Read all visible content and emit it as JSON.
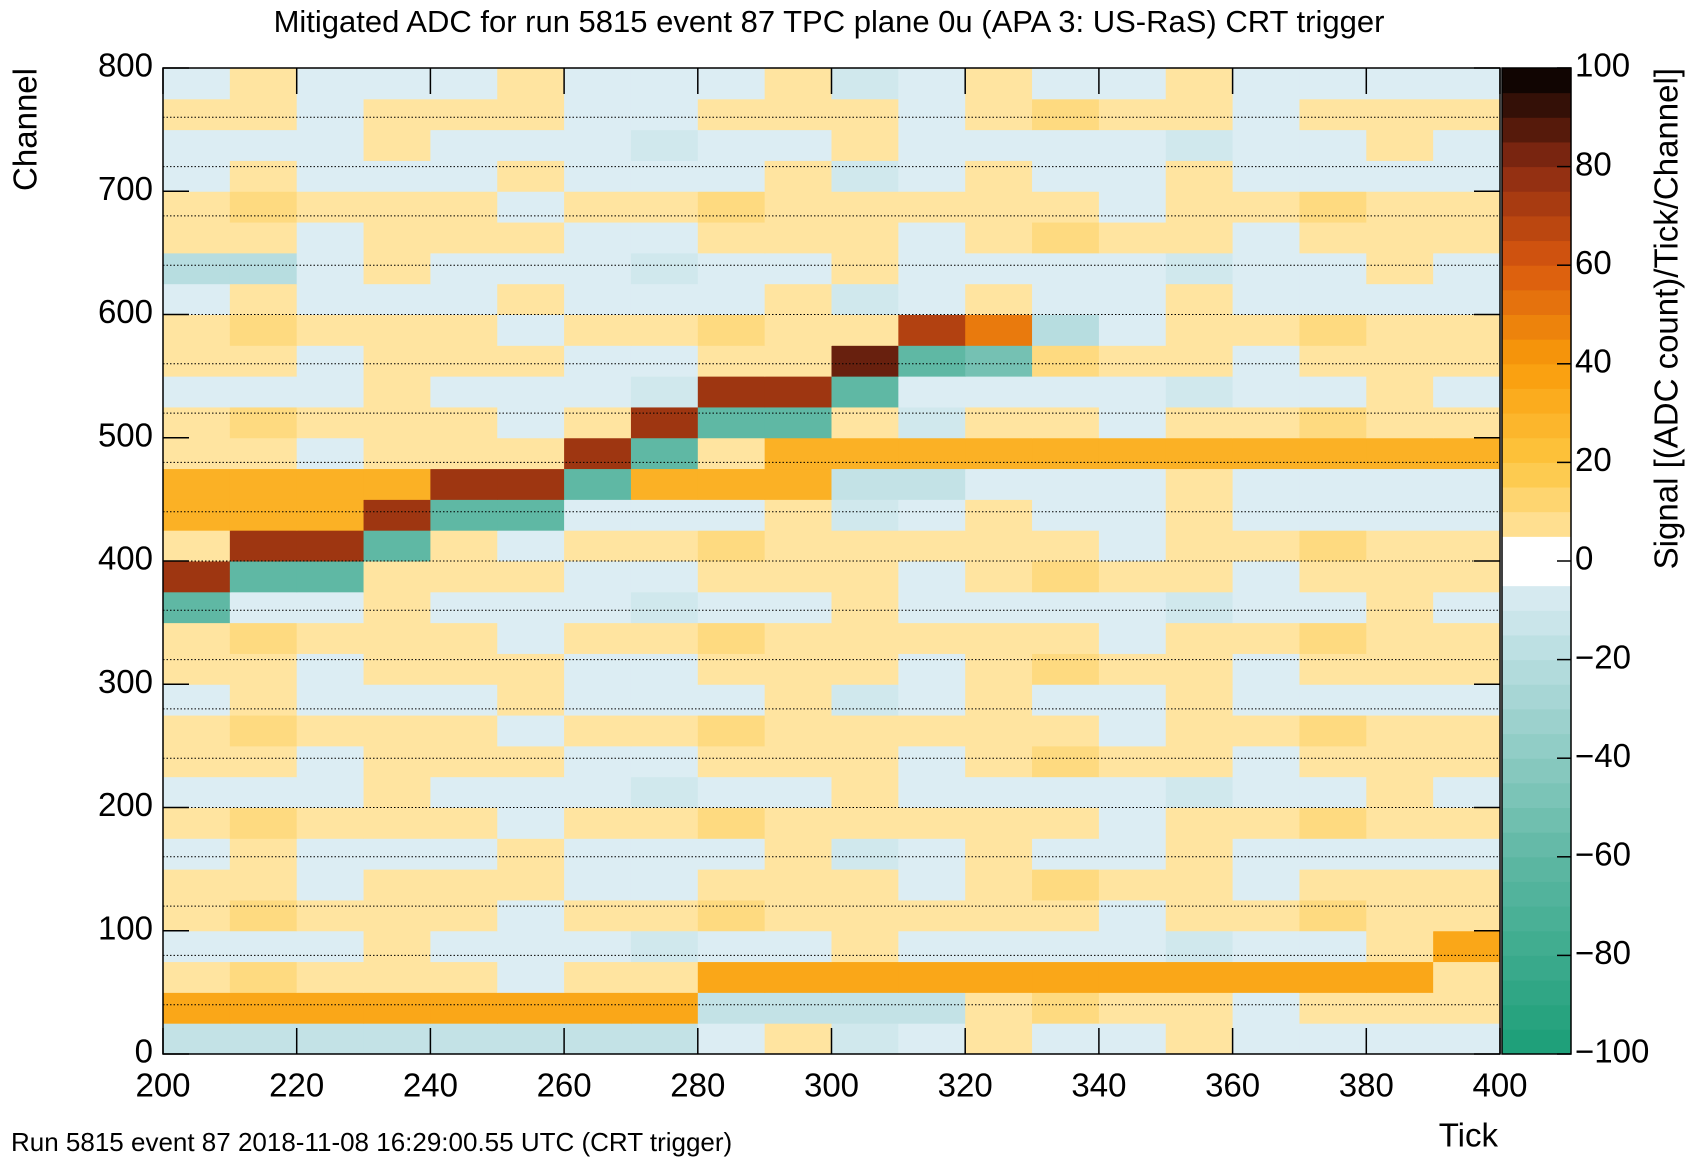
{
  "chart_data": {
    "type": "heatmap",
    "title": "Mitigated ADC for run 5815 event 87 TPC plane 0u (APA 3: US-RaS) CRT trigger",
    "x_label": "Tick",
    "y_label": "Channel",
    "z_label": "Signal [(ADC count)/Tick/Channel]",
    "footer": "Run 5815 event 87 2018-11-08 16:29:00.55 UTC (CRT trigger)",
    "xlim": [
      200,
      400
    ],
    "ylim": [
      0,
      800
    ],
    "zlim": [
      -100,
      100
    ],
    "xticks": [
      200,
      220,
      240,
      260,
      280,
      300,
      320,
      340,
      360,
      380,
      400
    ],
    "yticks": [
      0,
      100,
      200,
      300,
      400,
      500,
      600,
      700,
      800
    ],
    "zticks": [
      {
        "value": -100,
        "label": "−100"
      },
      {
        "value": -80,
        "label": "−80"
      },
      {
        "value": -60,
        "label": "−60"
      },
      {
        "value": -40,
        "label": "−40"
      },
      {
        "value": -20,
        "label": "−20"
      },
      0,
      20,
      40,
      60,
      80,
      100
    ],
    "hlines": [
      40,
      80,
      120,
      160,
      200,
      240,
      280,
      320,
      360,
      400,
      440,
      480,
      520,
      560,
      600,
      640,
      680,
      720,
      760
    ],
    "colorscale": [
      [
        -100,
        "#1b9e77"
      ],
      [
        -60,
        "#5fb8a4"
      ],
      [
        -20,
        "#b7dde0"
      ],
      [
        -5,
        "#dcedf3"
      ],
      [
        -4,
        "#ffffff"
      ],
      [
        4,
        "#ffffff"
      ],
      [
        5,
        "#ffe4a0"
      ],
      [
        20,
        "#fdc640"
      ],
      [
        40,
        "#f99c0a"
      ],
      [
        60,
        "#d9580f"
      ],
      [
        80,
        "#8a2a12"
      ],
      [
        100,
        "#000000"
      ]
    ],
    "x_edges": [
      200,
      210,
      220,
      230,
      240,
      250,
      260,
      270,
      280,
      290,
      300,
      310,
      320,
      330,
      340,
      350,
      360,
      370,
      380,
      390,
      400
    ],
    "y_edges": [
      0,
      25,
      50,
      75,
      100,
      125,
      150,
      175,
      200,
      225,
      250,
      275,
      300,
      325,
      350,
      375,
      400,
      425,
      450,
      475,
      500,
      525,
      550,
      575,
      600,
      625,
      650,
      675,
      700,
      725,
      750,
      775,
      800
    ],
    "z": [
      [
        -15,
        -15,
        -15,
        -15,
        -15,
        -15,
        -15,
        -15,
        -5,
        5,
        -10,
        -5,
        5,
        -5,
        -5,
        5,
        -5,
        -5,
        -5,
        -5
      ],
      [
        35,
        35,
        35,
        35,
        35,
        35,
        35,
        35,
        -15,
        -15,
        -15,
        -15,
        5,
        10,
        5,
        5,
        -5,
        5,
        5,
        5
      ],
      [
        5,
        10,
        5,
        5,
        5,
        -5,
        5,
        5,
        35,
        35,
        35,
        35,
        35,
        35,
        35,
        35,
        35,
        35,
        35,
        5
      ],
      [
        -5,
        -5,
        -5,
        5,
        -5,
        -5,
        -5,
        -10,
        -5,
        -5,
        5,
        -5,
        -5,
        -5,
        -5,
        -10,
        -5,
        -5,
        5,
        35
      ],
      [
        5,
        10,
        5,
        5,
        5,
        -5,
        5,
        5,
        10,
        5,
        5,
        5,
        5,
        5,
        -5,
        5,
        5,
        10,
        5,
        5
      ],
      [
        5,
        5,
        -5,
        5,
        5,
        5,
        -5,
        -5,
        5,
        5,
        5,
        -5,
        5,
        10,
        5,
        5,
        -5,
        5,
        5,
        5
      ],
      [
        -5,
        5,
        -5,
        -5,
        -5,
        5,
        -5,
        -5,
        -5,
        5,
        -10,
        -5,
        5,
        -5,
        -5,
        5,
        -5,
        -5,
        -5,
        -5
      ],
      [
        5,
        10,
        5,
        5,
        5,
        -5,
        5,
        5,
        10,
        5,
        5,
        5,
        5,
        5,
        -5,
        5,
        5,
        10,
        5,
        5
      ],
      [
        -5,
        -5,
        -5,
        5,
        -5,
        -5,
        -5,
        -10,
        -5,
        -5,
        5,
        -5,
        -5,
        -5,
        -5,
        -10,
        -5,
        -5,
        5,
        -5
      ],
      [
        5,
        5,
        -5,
        5,
        5,
        5,
        -5,
        -5,
        5,
        5,
        5,
        -5,
        5,
        10,
        5,
        5,
        -5,
        5,
        5,
        5
      ],
      [
        5,
        10,
        5,
        5,
        5,
        -5,
        5,
        5,
        10,
        5,
        5,
        5,
        5,
        5,
        -5,
        5,
        5,
        10,
        5,
        5
      ],
      [
        -5,
        5,
        -5,
        -5,
        -5,
        5,
        -5,
        -5,
        -5,
        5,
        -10,
        -5,
        5,
        -5,
        -5,
        5,
        -5,
        -5,
        -5,
        -5
      ],
      [
        5,
        5,
        -5,
        5,
        5,
        5,
        -5,
        -5,
        5,
        5,
        5,
        -5,
        5,
        10,
        5,
        5,
        -5,
        5,
        5,
        5
      ],
      [
        5,
        10,
        5,
        5,
        5,
        -5,
        5,
        5,
        10,
        5,
        5,
        5,
        5,
        5,
        -5,
        5,
        5,
        10,
        5,
        5
      ],
      [
        -60,
        -5,
        -5,
        5,
        -5,
        -5,
        -5,
        -10,
        -5,
        -5,
        5,
        -5,
        -5,
        -5,
        -5,
        -10,
        -5,
        -5,
        5,
        -5
      ],
      [
        75,
        -60,
        -60,
        5,
        5,
        5,
        -5,
        -5,
        5,
        5,
        5,
        -5,
        5,
        10,
        5,
        5,
        -5,
        5,
        5,
        5
      ],
      [
        5,
        75,
        75,
        -60,
        5,
        -5,
        5,
        5,
        10,
        5,
        5,
        5,
        5,
        5,
        -5,
        5,
        5,
        10,
        5,
        5
      ],
      [
        30,
        30,
        30,
        75,
        -60,
        -60,
        -5,
        -5,
        -5,
        5,
        -10,
        -5,
        5,
        -5,
        -5,
        5,
        -5,
        -5,
        -5,
        -5
      ],
      [
        30,
        30,
        30,
        30,
        75,
        75,
        -60,
        30,
        30,
        30,
        -15,
        -15,
        -5,
        -5,
        -5,
        5,
        -5,
        -5,
        -5,
        -5
      ],
      [
        5,
        5,
        -5,
        5,
        5,
        5,
        75,
        -60,
        5,
        30,
        30,
        30,
        30,
        30,
        30,
        30,
        30,
        30,
        30,
        30
      ],
      [
        5,
        10,
        5,
        5,
        5,
        -5,
        5,
        75,
        -60,
        -60,
        5,
        -10,
        5,
        5,
        -5,
        5,
        5,
        10,
        5,
        5
      ],
      [
        -5,
        -5,
        -5,
        5,
        -5,
        -5,
        -5,
        -10,
        75,
        75,
        -60,
        -5,
        -5,
        -5,
        -5,
        -10,
        -5,
        -5,
        5,
        -5
      ],
      [
        5,
        5,
        -5,
        5,
        5,
        5,
        -5,
        -5,
        5,
        5,
        85,
        -60,
        -50,
        10,
        5,
        5,
        -5,
        5,
        5,
        5
      ],
      [
        5,
        10,
        5,
        5,
        5,
        -5,
        5,
        5,
        10,
        5,
        5,
        70,
        50,
        -20,
        -5,
        5,
        5,
        10,
        5,
        5
      ],
      [
        -5,
        5,
        -5,
        -5,
        -5,
        5,
        -5,
        -5,
        -5,
        5,
        -10,
        -5,
        5,
        -5,
        -5,
        5,
        -5,
        -5,
        -5,
        -5
      ],
      [
        -20,
        -20,
        -5,
        5,
        -5,
        -5,
        -5,
        -10,
        -5,
        -5,
        5,
        -5,
        -5,
        -5,
        -5,
        -10,
        -5,
        -5,
        5,
        -5
      ],
      [
        5,
        5,
        -5,
        5,
        5,
        5,
        -5,
        -5,
        5,
        5,
        5,
        -5,
        5,
        10,
        5,
        5,
        -5,
        5,
        5,
        5
      ],
      [
        5,
        10,
        5,
        5,
        5,
        -5,
        5,
        5,
        10,
        5,
        5,
        5,
        5,
        5,
        -5,
        5,
        5,
        10,
        5,
        5
      ],
      [
        -5,
        5,
        -5,
        -5,
        -5,
        5,
        -5,
        -5,
        -5,
        5,
        -10,
        -5,
        5,
        -5,
        -5,
        5,
        -5,
        -5,
        -5,
        -5
      ],
      [
        -5,
        -5,
        -5,
        5,
        -5,
        -5,
        -5,
        -10,
        -5,
        -5,
        5,
        -5,
        -5,
        -5,
        -5,
        -10,
        -5,
        -5,
        5,
        -5
      ],
      [
        5,
        5,
        -5,
        5,
        5,
        5,
        -5,
        -5,
        5,
        5,
        5,
        -5,
        5,
        10,
        5,
        5,
        -5,
        5,
        5,
        5
      ],
      [
        -5,
        5,
        -5,
        -5,
        -5,
        5,
        -5,
        -5,
        -5,
        5,
        -10,
        -5,
        5,
        -5,
        -5,
        5,
        -5,
        -5,
        -5,
        -5
      ]
    ]
  }
}
